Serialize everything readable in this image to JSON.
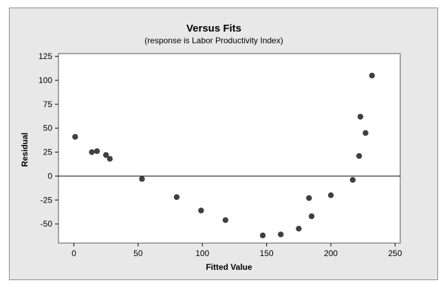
{
  "chart_data": {
    "type": "scatter",
    "title": "Versus Fits",
    "subtitle": "(response is Labor Productivity Index)",
    "xlabel": "Fitted Value",
    "ylabel": "Residual",
    "xlim": [
      -12,
      254
    ],
    "ylim": [
      -70,
      128
    ],
    "x_ticks": [
      0,
      50,
      100,
      150,
      200,
      250
    ],
    "y_ticks": [
      125,
      100,
      75,
      50,
      25,
      0,
      -25,
      -50
    ],
    "reference_line_y": 0,
    "grid": false,
    "marker_color": "#404040",
    "points": [
      {
        "x": 1,
        "y": 41
      },
      {
        "x": 14,
        "y": 25
      },
      {
        "x": 18,
        "y": 26
      },
      {
        "x": 25,
        "y": 22
      },
      {
        "x": 28,
        "y": 18
      },
      {
        "x": 53,
        "y": -3
      },
      {
        "x": 80,
        "y": -22
      },
      {
        "x": 99,
        "y": -36
      },
      {
        "x": 118,
        "y": -46
      },
      {
        "x": 147,
        "y": -62
      },
      {
        "x": 161,
        "y": -61
      },
      {
        "x": 175,
        "y": -55
      },
      {
        "x": 183,
        "y": -23
      },
      {
        "x": 185,
        "y": -42
      },
      {
        "x": 200,
        "y": -20
      },
      {
        "x": 217,
        "y": -4
      },
      {
        "x": 222,
        "y": 21
      },
      {
        "x": 223,
        "y": 62
      },
      {
        "x": 227,
        "y": 45
      },
      {
        "x": 232,
        "y": 105
      }
    ]
  }
}
